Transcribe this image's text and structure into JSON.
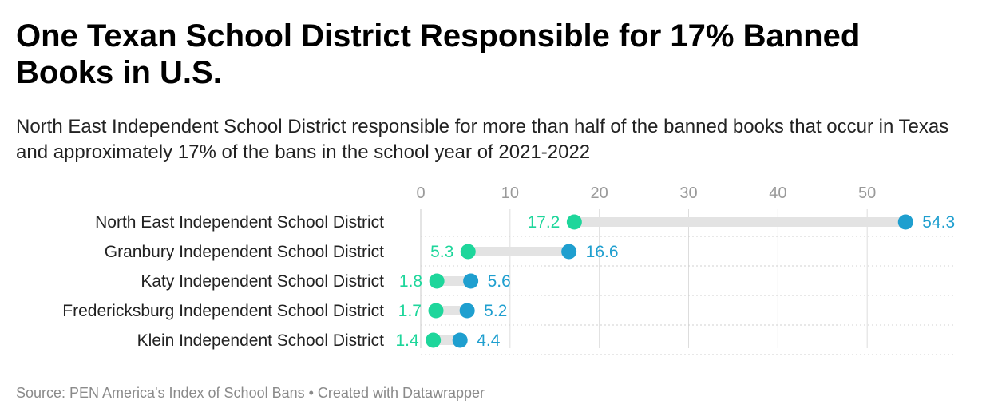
{
  "title": "One Texan School District Responsible for 17% Banned Books in U.S.",
  "subtitle": "North East Independent School District responsible for more than half of the banned books that occur in Texas and approximately 17% of the bans in the school year of 2021-2022",
  "source": "Source: PEN America's Index of School Bans • Created with Datawrapper",
  "colors": {
    "start": "#1ed69b",
    "end": "#1f9fcf",
    "bar": "#e3e3e3",
    "grid": "#dddddd",
    "tick": "#9a9a9a",
    "text": "#222222"
  },
  "chart_data": {
    "type": "dot-range",
    "categories": [
      "North East Independent School District",
      "Granbury Independent School District",
      "Katy Independent School District",
      "Fredericksburg Independent School District",
      "Klein Independent School District"
    ],
    "series": [
      {
        "values": [
          17.2,
          5.3,
          1.8,
          1.7,
          1.4
        ],
        "labels": [
          "17.2",
          "5.3",
          "1.8",
          "1.7",
          "1.4"
        ]
      },
      {
        "values": [
          54.3,
          16.6,
          5.6,
          5.2,
          4.4
        ],
        "labels": [
          "54.3",
          "16.6",
          "5.6",
          "5.2",
          "4.4"
        ]
      }
    ],
    "xticks": [
      "0",
      "10",
      "20",
      "30",
      "40",
      "50"
    ],
    "xlim": [
      0,
      60
    ],
    "grid": true
  }
}
